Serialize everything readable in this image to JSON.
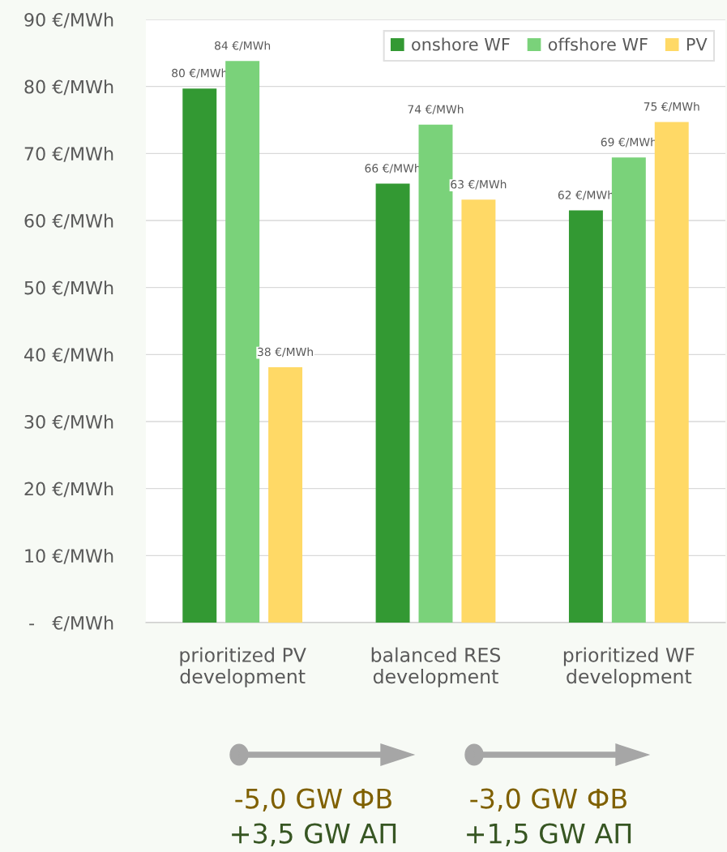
{
  "chart_data": {
    "type": "bar",
    "categories": [
      "prioritized PV\ndevelopment",
      "balanced RES\ndevelopment",
      "prioritized WF\ndevelopment"
    ],
    "series": [
      {
        "name": "onshore WF",
        "color": "#339933",
        "values": [
          79.7,
          65.5,
          61.5
        ],
        "value_labels": [
          "80 €/MWh",
          "66 €/MWh",
          "62 €/MWh"
        ]
      },
      {
        "name": "offshore WF",
        "color": "#7ad27a",
        "values": [
          83.8,
          74.3,
          69.4
        ],
        "value_labels": [
          "84 €/MWh",
          "74 €/MWh",
          "69 €/MWh"
        ]
      },
      {
        "name": "PV",
        "color": "#ffd966",
        "values": [
          38.1,
          63.1,
          74.7
        ],
        "value_labels": [
          "38 €/MWh",
          "63 €/MWh",
          "75 €/MWh"
        ]
      }
    ],
    "ylim": [
      0,
      90
    ],
    "yticks": [
      {
        "value": 0,
        "label": "-   €/MWh"
      },
      {
        "value": 10,
        "label": "10 €/MWh"
      },
      {
        "value": 20,
        "label": "20 €/MWh"
      },
      {
        "value": 30,
        "label": "30 €/MWh"
      },
      {
        "value": 40,
        "label": "40 €/MWh"
      },
      {
        "value": 50,
        "label": "50 €/MWh"
      },
      {
        "value": 60,
        "label": "60 €/MWh"
      },
      {
        "value": 70,
        "label": "70 €/MWh"
      },
      {
        "value": 80,
        "label": "80 €/MWh"
      },
      {
        "value": 90,
        "label": "90 €/MWh"
      }
    ],
    "grid": "y",
    "legend": "top right",
    "annotations": [
      "-5,0 GW ФВ\n+3,5 GW АП",
      "-3,0 GW ФВ\n+1,5 GW АП"
    ]
  }
}
